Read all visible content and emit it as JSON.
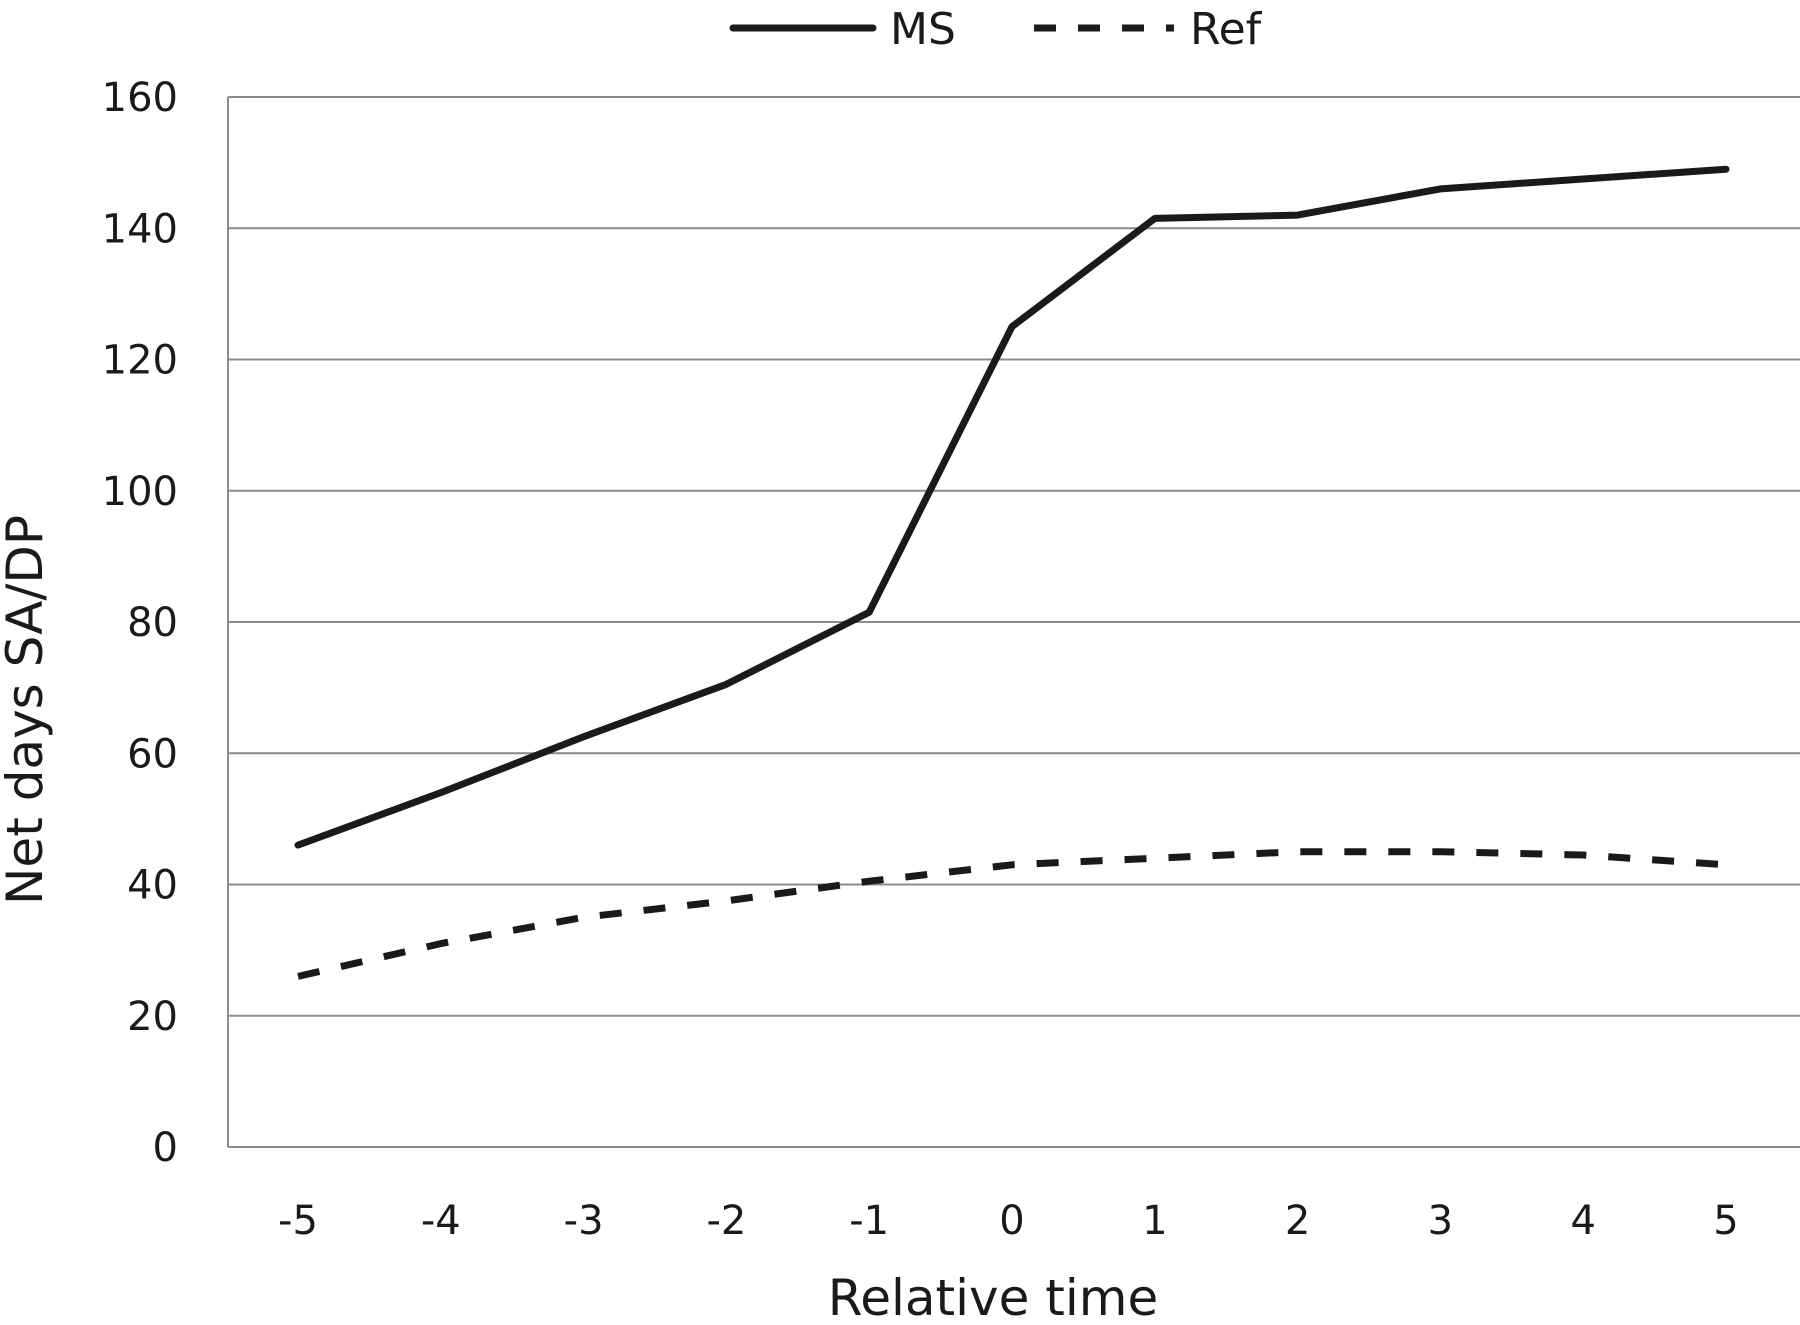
{
  "chart_data": {
    "type": "line",
    "x": [
      -5,
      -4,
      -3,
      -2,
      -1,
      0,
      1,
      2,
      3,
      4,
      5
    ],
    "series": [
      {
        "name": "MS",
        "values": [
          46,
          54,
          62.5,
          70.5,
          81.5,
          125,
          141.5,
          142,
          146,
          147.5,
          149
        ],
        "line_style": "solid",
        "color": "#1a1a1a"
      },
      {
        "name": "Ref",
        "values": [
          26,
          31,
          35,
          37.5,
          40.5,
          43,
          44,
          45,
          45,
          44.5,
          43
        ],
        "line_style": "dashed",
        "color": "#1a1a1a"
      }
    ],
    "title": "",
    "xlabel": "Relative time",
    "ylabel": "Net days SA/DP",
    "xlim": [
      -5,
      5
    ],
    "ylim": [
      0,
      160
    ],
    "y_ticks": [
      0,
      20,
      40,
      60,
      80,
      100,
      120,
      140,
      160
    ],
    "x_tick_labels": [
      "-5",
      "-4",
      "-3",
      "-2",
      "-1",
      "0",
      "1",
      "2",
      "3",
      "4",
      "5"
    ],
    "grid": "horizontal",
    "legend_position": "top-center",
    "colors": {
      "axis": "#8c8c8c",
      "grid": "#8c8c8c",
      "line": "#1a1a1a"
    }
  }
}
